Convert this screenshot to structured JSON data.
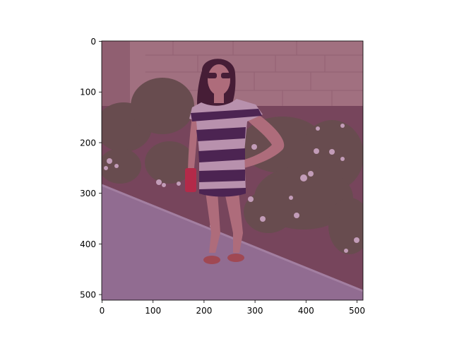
{
  "figure": {
    "x_ticks": [
      "0",
      "100",
      "200",
      "300",
      "400",
      "500"
    ],
    "y_ticks": [
      "0",
      "100",
      "200",
      "300",
      "400",
      "500"
    ],
    "image_tint": "#7a2a62",
    "image_tint_opacity": 0.35,
    "colors": {
      "wall": "#b59591",
      "wall_dark": "#9c7b7a",
      "plants": "#5e5e46",
      "sidewalk": "#9d8fab",
      "curb": "#b9acc3",
      "dirt": "#75545a",
      "skin": "#c99089",
      "hair": "#2a1620",
      "dress_dark": "#34214a",
      "dress_light": "#d9c8d6",
      "clutch": "#d22a3c",
      "sandals": "#b4584c",
      "flowers": "#e9d9e6"
    }
  }
}
